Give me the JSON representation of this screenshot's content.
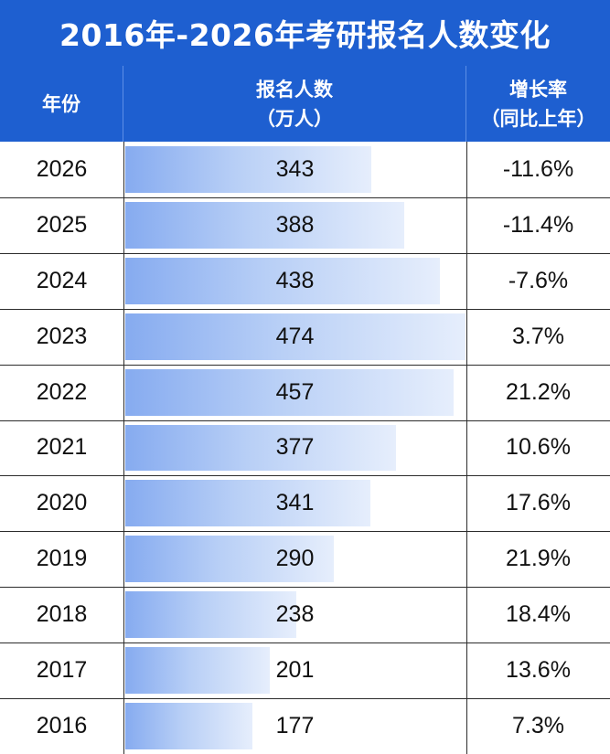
{
  "title": "2016年-2026年考研报名人数变化",
  "header": {
    "year": "年份",
    "count_line1": "报名人数",
    "count_line2": "（万人）",
    "rate_line1": "增长率",
    "rate_line2": "（同比上年）"
  },
  "chart_data": {
    "type": "table",
    "title": "2016年-2026年考研报名人数变化",
    "columns": [
      "年份",
      "报名人数（万人）",
      "增长率（同比上年）"
    ],
    "bar_max": 474,
    "rows": [
      {
        "year": "2026",
        "count": 343,
        "rate": "-11.6%"
      },
      {
        "year": "2025",
        "count": 388,
        "rate": "-11.4%"
      },
      {
        "year": "2024",
        "count": 438,
        "rate": "-7.6%"
      },
      {
        "year": "2023",
        "count": 474,
        "rate": "3.7%"
      },
      {
        "year": "2022",
        "count": 457,
        "rate": "21.2%"
      },
      {
        "year": "2021",
        "count": 377,
        "rate": "10.6%"
      },
      {
        "year": "2020",
        "count": 341,
        "rate": "17.6%"
      },
      {
        "year": "2019",
        "count": 290,
        "rate": "21.9%"
      },
      {
        "year": "2018",
        "count": 238,
        "rate": "18.4%"
      },
      {
        "year": "2017",
        "count": 201,
        "rate": "13.6%"
      },
      {
        "year": "2016",
        "count": 177,
        "rate": "7.3%"
      }
    ]
  }
}
